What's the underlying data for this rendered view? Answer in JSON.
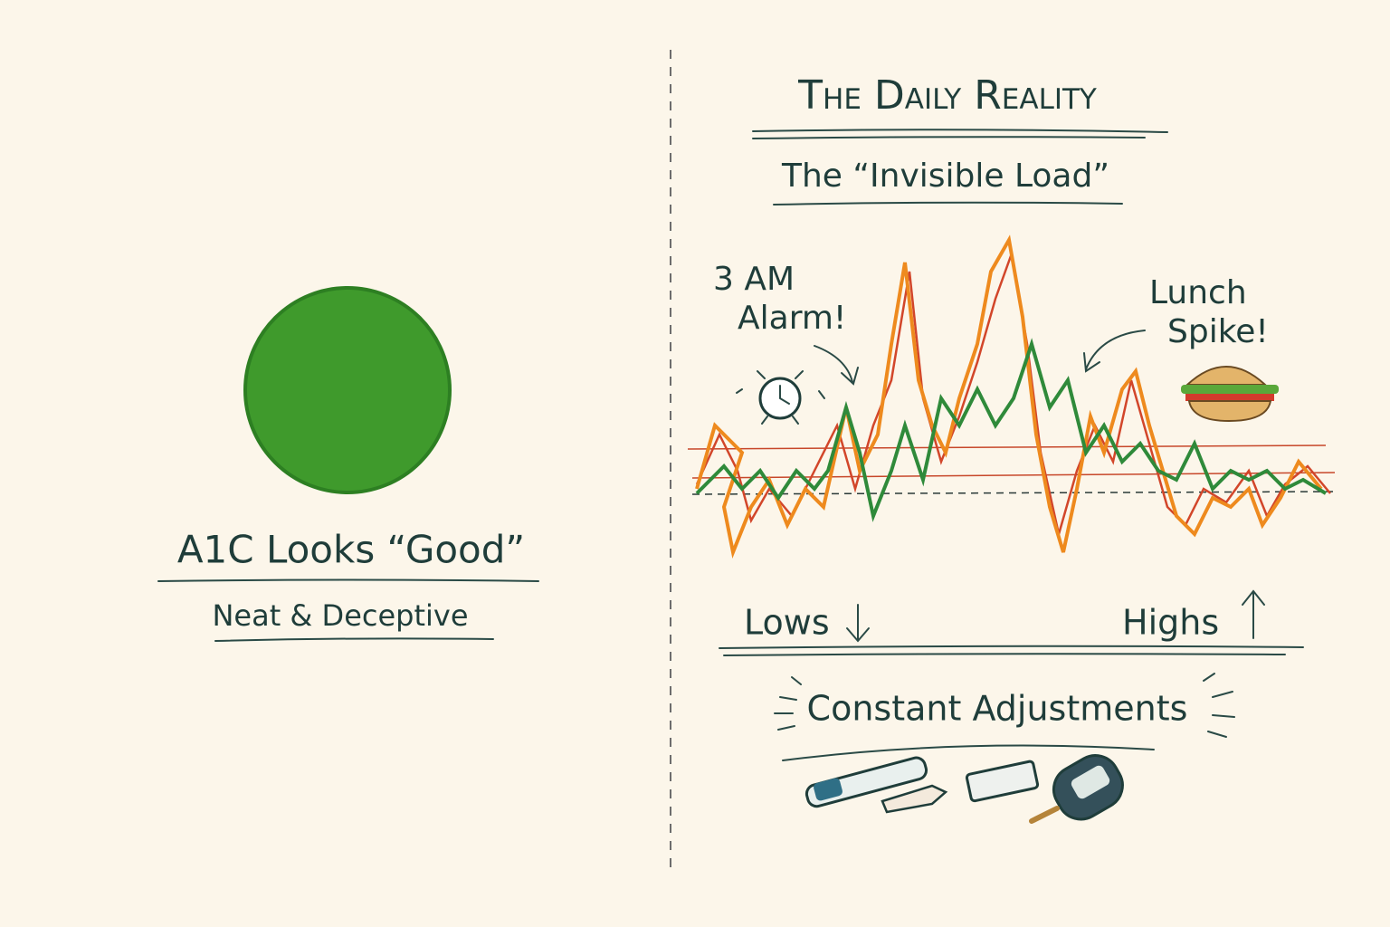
{
  "left": {
    "title": "A1C Looks “Good”",
    "subtitle": "Neat & Deceptive"
  },
  "right": {
    "title": "The Daily Reality",
    "subtitle": "The “Invisible Load”",
    "annotations": [
      {
        "lines": [
          "3 AM",
          "Alarm!"
        ]
      },
      {
        "lines": [
          "Lunch",
          "Spike!"
        ]
      }
    ],
    "lows": "Lows",
    "highs": "Highs",
    "footer": "Constant Adjustments"
  }
}
